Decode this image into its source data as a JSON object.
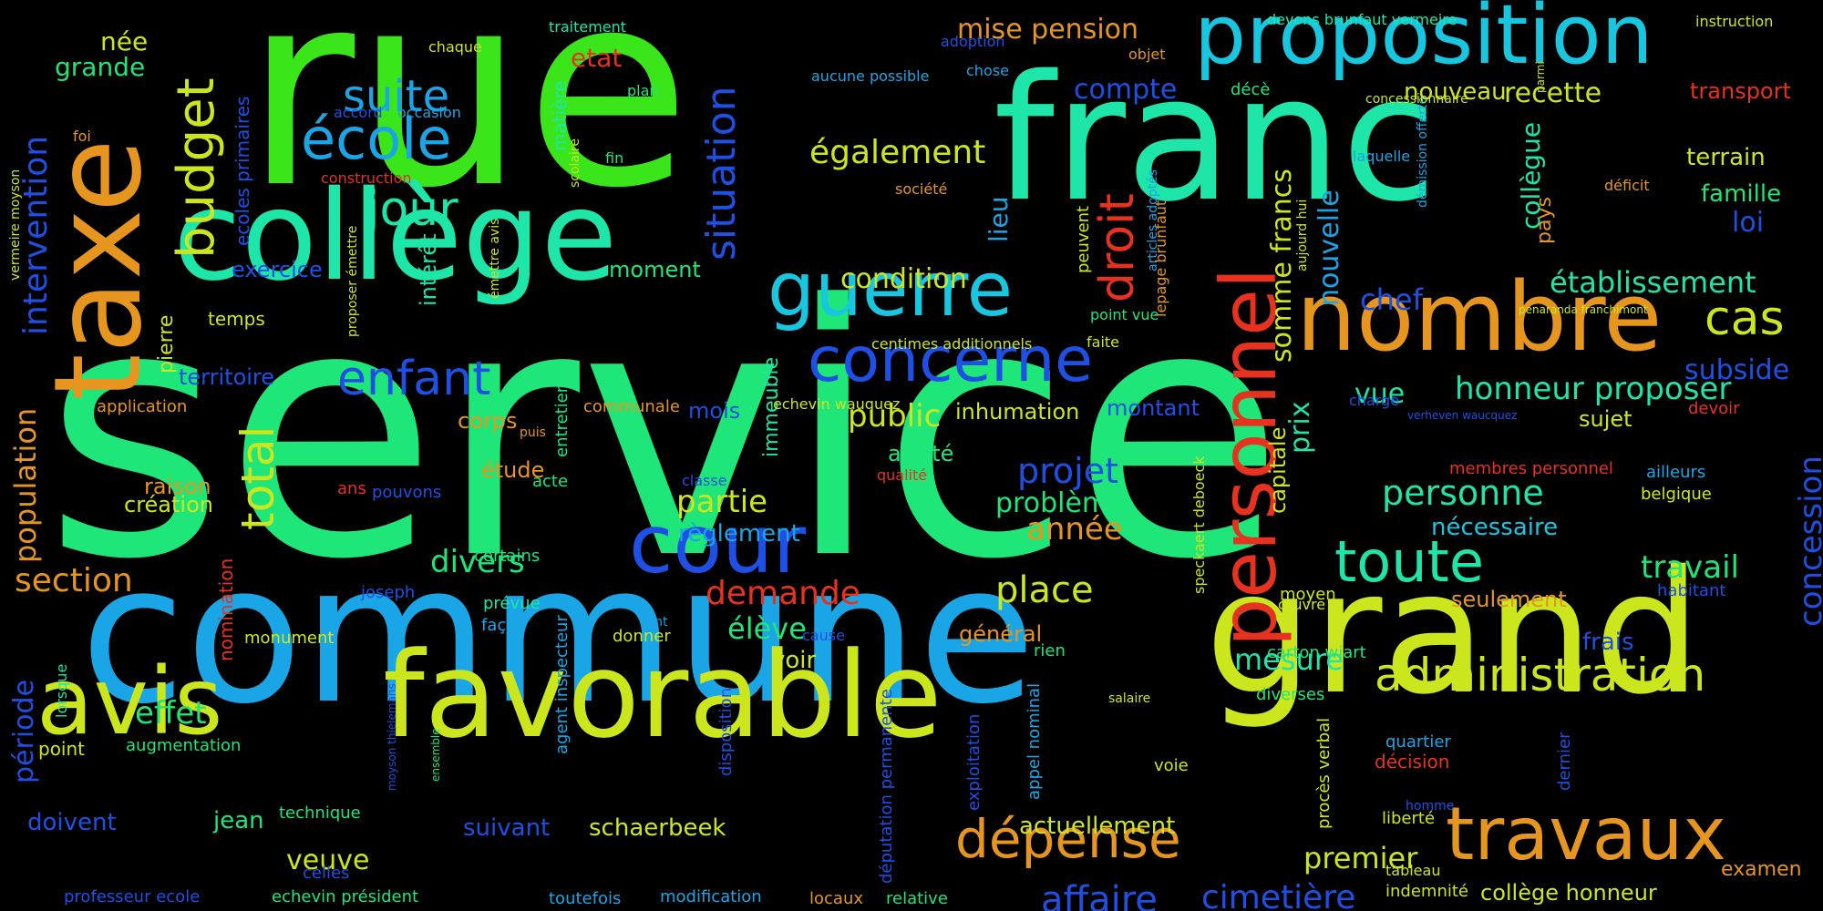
{
  "palette": {
    "background": "#000000",
    "lime": "#3ae61a",
    "teal": "#1ee6a8",
    "mint": "#1ee678",
    "cyan": "#18c6e0",
    "sky": "#1aa6e6",
    "blue": "#1e50e6",
    "orange": "#e6961e",
    "red": "#e6321e",
    "yellow": "#cce61e",
    "olive": "#b8e61e"
  },
  "words": {
    "service": "service",
    "rue": "rue",
    "commune": "commune",
    "franc": "franc",
    "grand": "grand",
    "college": "collège",
    "favorable": "favorable",
    "avis": "avis",
    "taxe": "taxe",
    "nombre": "nombre",
    "proposition": "proposition",
    "guerre": "guerre",
    "cour": "cour",
    "travaux": "travaux",
    "personnel": "personnel",
    "concerne": "concerne",
    "administration": "administration",
    "enfant": "enfant",
    "toute": "toute",
    "ecole": "école",
    "budget": "budget",
    "droit": "droit",
    "cas": "cas",
    "depense": "dépense",
    "total": "total",
    "suite": "suite",
    "jour": "jour",
    "situation": "situation",
    "etablissement": "établissement",
    "intervention": "intervention",
    "egalement": "également",
    "cimetiere": "cimetière",
    "affaire": "affaire",
    "premier": "premier",
    "honneur_proposer": "honneur proposer",
    "personne": "personne",
    "place": "place",
    "projet": "projet",
    "annee": "année",
    "travail": "travail",
    "population": "population",
    "section": "section",
    "somme_francs": "somme francs",
    "mesure": "mesure",
    "nouvelle": "nouvelle",
    "demande": "demande",
    "eleve": "élève",
    "effet": "effet",
    "divers": "divers",
    "partie": "partie",
    "public": "public",
    "probleme": "problème",
    "condition": "condition",
    "recette": "recette",
    "mise_pension": "mise pension",
    "compte": "compte",
    "chef": "chef",
    "concession": "concession",
    "periode": "période",
    "prix": "prix",
    "college_small": "collègue",
    "grande": "grande",
    "nee": "née",
    "etat": "etat",
    "lieu": "lieu",
    "vue": "vue",
    "subside": "subside",
    "terrain": "terrain",
    "famille": "famille",
    "loi": "loi",
    "transport": "transport",
    "nouveau": "nouveau",
    "moment": "moment",
    "suivant": "suivant",
    "schaerbeek": "schaerbeek",
    "actuellement": "actuellement",
    "veuve": "veuve",
    "doivent": "doivent",
    "jean": "jean",
    "frais": "frais",
    "seulement": "seulement",
    "necessaire": "nécessaire",
    "sujet": "sujet",
    "inhumation": "inhumation",
    "montant": "montant",
    "mois": "mois",
    "reglement": "règlement",
    "capitale": "capitale",
    "raison": "raison",
    "creation": "création",
    "corps": "corps",
    "etude": "étude",
    "voir": "voir",
    "territoire": "territoire",
    "exercice": "exercice",
    "interet": "intérêt",
    "temps": "temps",
    "pierre": "pierre",
    "arrete": "arrêté",
    "general": "général",
    "college_honneur": "collège honneur",
    "ecoles_primaires": "ecoles primaires",
    "examen": "examen",
    "pays": "pays",
    "matiere": "matière",
    "decision": "décision",
    "liberte": "liberté",
    "indemnite": "indemnité",
    "diverses": "diverses",
    "quartier": "quartier",
    "carton_wiart": "carton wiart",
    "moyen": "moyen",
    "oeuvre": "œuvre",
    "ailleurs": "ailleurs",
    "belgique": "belgique",
    "habitant": "habitant",
    "membres_personnel": "membres personnel",
    "devoir": "devoir",
    "charge": "charge",
    "immeuble": "immeuble",
    "nomination": "nomination",
    "augmentation": "augmentation",
    "monument": "monument",
    "point": "point",
    "lorsque": "lorsque",
    "professeur_ecole": "professeur ecole",
    "echevin_president": "echevin président",
    "toutefois": "toutefois",
    "modification": "modification",
    "locaux": "locaux",
    "relative": "relative",
    "celles": "celles",
    "technique": "technique",
    "agent_inspecteur": "agent inspecteur",
    "disposition": "disposition",
    "deputation_permanente": "députation permanente",
    "exploitation": "exploitation",
    "appel_nominal": "appel nominal",
    "voie": "voie",
    "salaire": "salaire",
    "proces_verbal": "procès verbal",
    "homme": "homme",
    "tableau": "tableau",
    "dernier": "dernier",
    "rien": "rien",
    "cause": "cause",
    "tant": "tant",
    "donner": "donner",
    "joseph": "joseph",
    "facon": "façon",
    "prevue": "prévue",
    "certains": "certains",
    "acte": "acte",
    "pouvons": "pouvons",
    "ans": "ans",
    "classe": "classe",
    "qualite": "qualité",
    "puis": "puis",
    "entretien": "entretien",
    "communale": "communale",
    "application": "application",
    "echevin_wauquez": "echevin wauquez",
    "centimes_additionnels": "centimes additionnels",
    "faite": "faite",
    "point_vue": "point vue",
    "peuvent": "peuvent",
    "lepage_brunfaut": "lepage brunfaut",
    "speckaert_deboeck": "speckaert deboeck",
    "societe": "société",
    "deficit": "déficit",
    "laquelle": "laquelle",
    "deces": "décè",
    "objet": "objet",
    "chose": "chose",
    "adoption": "adoption",
    "aucune_possible": "aucune possible",
    "accord": "accord",
    "occasion": "occasion",
    "construction": "construction",
    "traitement": "traitement",
    "chaque": "chaque",
    "plan": "plan",
    "fin": "fin",
    "scolaire": "scolaire",
    "foi": "foi",
    "vermeire_moyson": "vermeire moyson",
    "proposer_emettre": "proposer émettre",
    "emettre_avis": "émettre avis",
    "articles_adoptes": "articles adoptés",
    "aujourd_hui": "aujourd hui",
    "demission_offerte": "démission offerte",
    "concessionnaire": "concessionnaire",
    "parmi": "parmi",
    "instruction": "instruction",
    "devons_brunfaut_vermeire": "devons brunfaut vermeire",
    "penaranda_franchimont": "penaranda franchimont",
    "verheven_waucquez": "verheven waucquez",
    "moyson_thielemans": "moyson thielemans",
    "ensemble": "ensemble"
  }
}
